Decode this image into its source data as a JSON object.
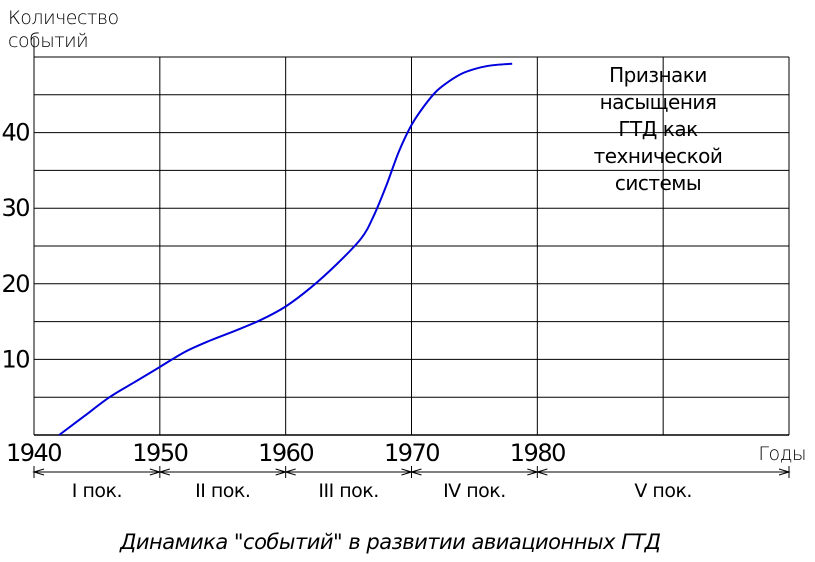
{
  "chart_data": {
    "type": "line",
    "ylabel_lines": [
      "Количество",
      "событий"
    ],
    "xlabel": "Годы",
    "xlim": [
      1940,
      2000
    ],
    "ylim": [
      0,
      50
    ],
    "x_ticks": [
      "1940",
      "1950",
      "1960",
      "1970",
      "1980"
    ],
    "y_ticks": [
      "10",
      "20",
      "30",
      "40"
    ],
    "grid": true,
    "series": [
      {
        "color": "#0000dd",
        "x": [
          1942.0,
          1944.0,
          1946.0,
          1948.0,
          1950.0,
          1952.0,
          1954.0,
          1956.0,
          1958.0,
          1960.0,
          1962.0,
          1964.0,
          1966.0,
          1967.0,
          1968.0,
          1969.0,
          1970.0,
          1971.0,
          1972.0,
          1973.0,
          1974.0,
          1975.0,
          1976.0,
          1977.0,
          1978.0
        ],
        "y": [
          0.0,
          2.5,
          5.0,
          7.0,
          9.0,
          11.0,
          12.5,
          13.8,
          15.2,
          17.0,
          19.5,
          22.5,
          26.0,
          29.0,
          33.0,
          37.5,
          41.0,
          43.5,
          45.5,
          46.8,
          47.8,
          48.4,
          48.8,
          49.0,
          49.1
        ]
      }
    ],
    "annotation_lines": [
      "Признаки",
      "насыщения",
      "ГТД как",
      "технической",
      "системы"
    ],
    "periods": [
      "I пок.",
      "II пок.",
      "III пок.",
      "IV пок.",
      "V пок."
    ]
  },
  "caption": "Динамика \"событий\" в развитии авиационных ГТД"
}
